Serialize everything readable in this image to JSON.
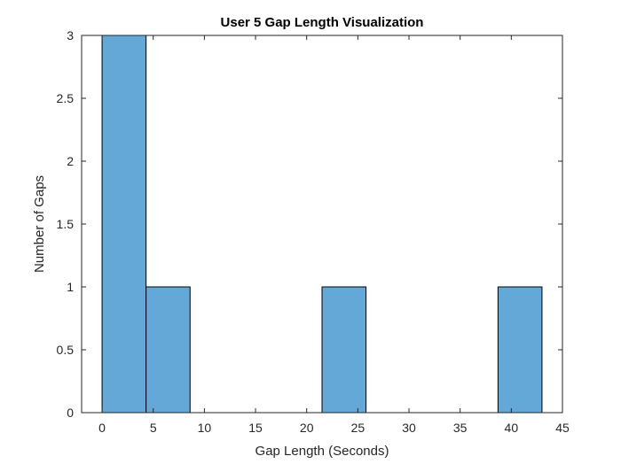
{
  "chart_data": {
    "type": "bar",
    "title": "User 5 Gap Length Visualization",
    "xlabel": "Gap Length (Seconds)",
    "ylabel": "Number of Gaps",
    "bin_edges": [
      0,
      4.3,
      8.6,
      12.9,
      17.2,
      21.5,
      25.8,
      30.1,
      34.4,
      38.7,
      43.0
    ],
    "values": [
      3,
      1,
      0,
      0,
      0,
      1,
      0,
      0,
      0,
      1
    ],
    "xlim": [
      -2,
      45
    ],
    "ylim": [
      0,
      3
    ],
    "xticks": [
      0,
      5,
      10,
      15,
      20,
      25,
      30,
      35,
      40,
      45
    ],
    "yticks": [
      0,
      0.5,
      1,
      1.5,
      2,
      2.5,
      3
    ],
    "ytick_labels": [
      "0",
      "0.5",
      "1",
      "1.5",
      "2",
      "2.5",
      "3"
    ],
    "grid": false,
    "bar_color": "#64a8d7",
    "edge_color": "#000000"
  }
}
